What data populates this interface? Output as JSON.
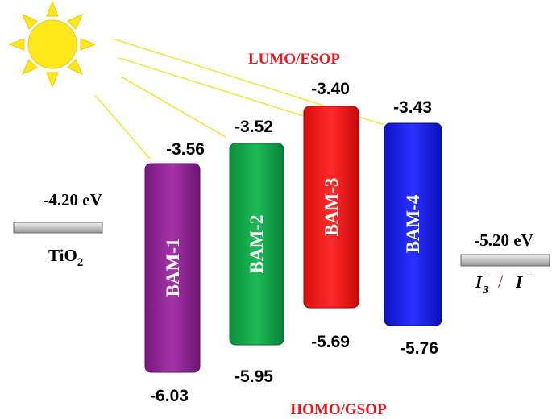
{
  "header": {
    "lumo_label": "LUMO/ESOP",
    "homo_label": "HOMO/GSOP"
  },
  "tio2": {
    "energy": "-4.20 eV",
    "name": "TiO",
    "subscript": "2"
  },
  "electrolyte": {
    "energy": "-5.20 eV",
    "symbol": "I",
    "sub": "3",
    "sup": "−",
    "slash": "/",
    "symbol2": "I",
    "sup2": "−"
  },
  "dyes": [
    {
      "name": "BAM-1",
      "lumo": "-3.56",
      "homo": "-6.03"
    },
    {
      "name": "BAM-2",
      "lumo": "-3.52",
      "homo": "-5.95"
    },
    {
      "name": "BAM-3",
      "lumo": "-3.40",
      "homo": "-5.69"
    },
    {
      "name": "BAM-4",
      "lumo": "-3.43",
      "homo": "-5.76"
    }
  ]
}
